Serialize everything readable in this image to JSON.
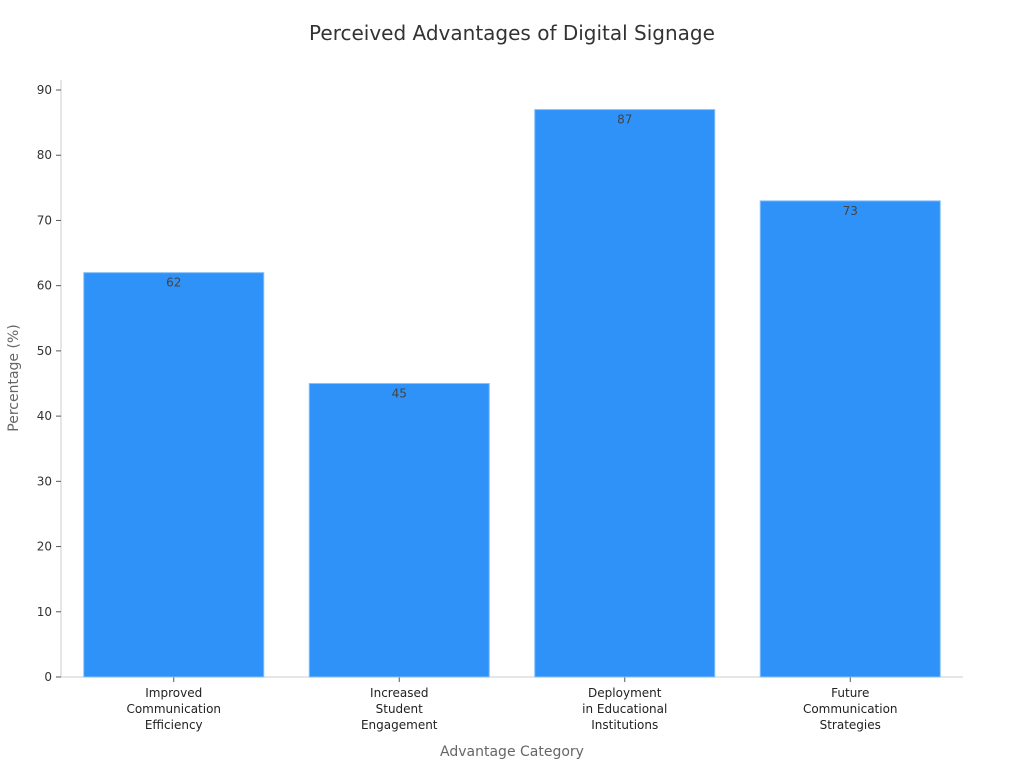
{
  "chart_data": {
    "type": "bar",
    "title": "Perceived Advantages of Digital Signage",
    "xlabel": "Advantage Category",
    "ylabel": "Percentage (%)",
    "categories": [
      [
        "Improved",
        "Communication",
        "Efficiency"
      ],
      [
        "Increased",
        "Student",
        "Engagement"
      ],
      [
        "Deployment",
        "in Educational",
        "Institutions"
      ],
      [
        "Future",
        "Communication",
        "Strategies"
      ]
    ],
    "values": [
      62,
      45,
      87,
      73
    ],
    "ylim": [
      0,
      90
    ],
    "yticks": [
      0,
      10,
      20,
      30,
      40,
      50,
      60,
      70,
      80,
      90
    ],
    "bar_color": "#2f92f8",
    "bar_edge_color": "#86bff9",
    "grid": false,
    "legend": "none"
  }
}
